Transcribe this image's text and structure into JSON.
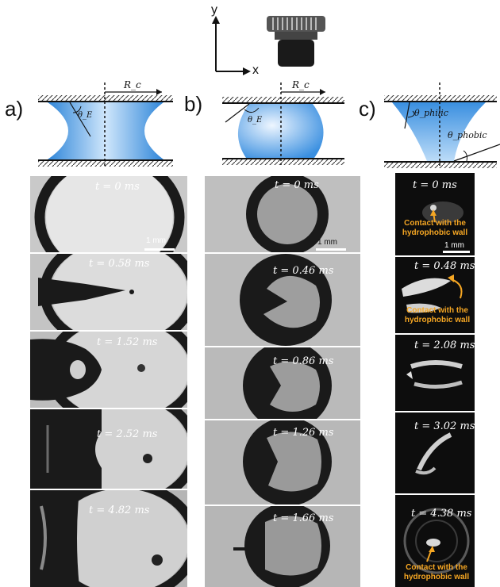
{
  "axes": {
    "y_label": "y",
    "x_label": "x"
  },
  "panels": [
    {
      "label": "a)",
      "schematic": {
        "radius": "R_c",
        "angle": "θ_E"
      }
    },
    {
      "label": "b)",
      "schematic": {
        "radius": "R_c",
        "angle": "θ_E"
      }
    },
    {
      "label": "c)",
      "schematic": {
        "angle_philic": "θ_philic",
        "angle_phobic": "θ_phobic"
      }
    }
  ],
  "frames": {
    "a": [
      "t = 0 ms",
      "t = 0.58 ms",
      "t = 1.52 ms",
      "t = 2.52 ms",
      "t = 4.82 ms"
    ],
    "b": [
      "t = 0 ms",
      "t = 0.46 ms",
      "t = 0.86 ms",
      "t = 1.26 ms",
      "t = 1.66 ms"
    ],
    "c": [
      "t = 0 ms",
      "t = 0.48 ms",
      "t = 2.08 ms",
      "t = 3.02 ms",
      "t = 4.38 ms"
    ]
  },
  "scale_bar": "1 mm",
  "annotation": "Contact with the hydrophobic wall",
  "colors": {
    "liquid": "#3a9be8",
    "highlight": "#f5a623"
  }
}
